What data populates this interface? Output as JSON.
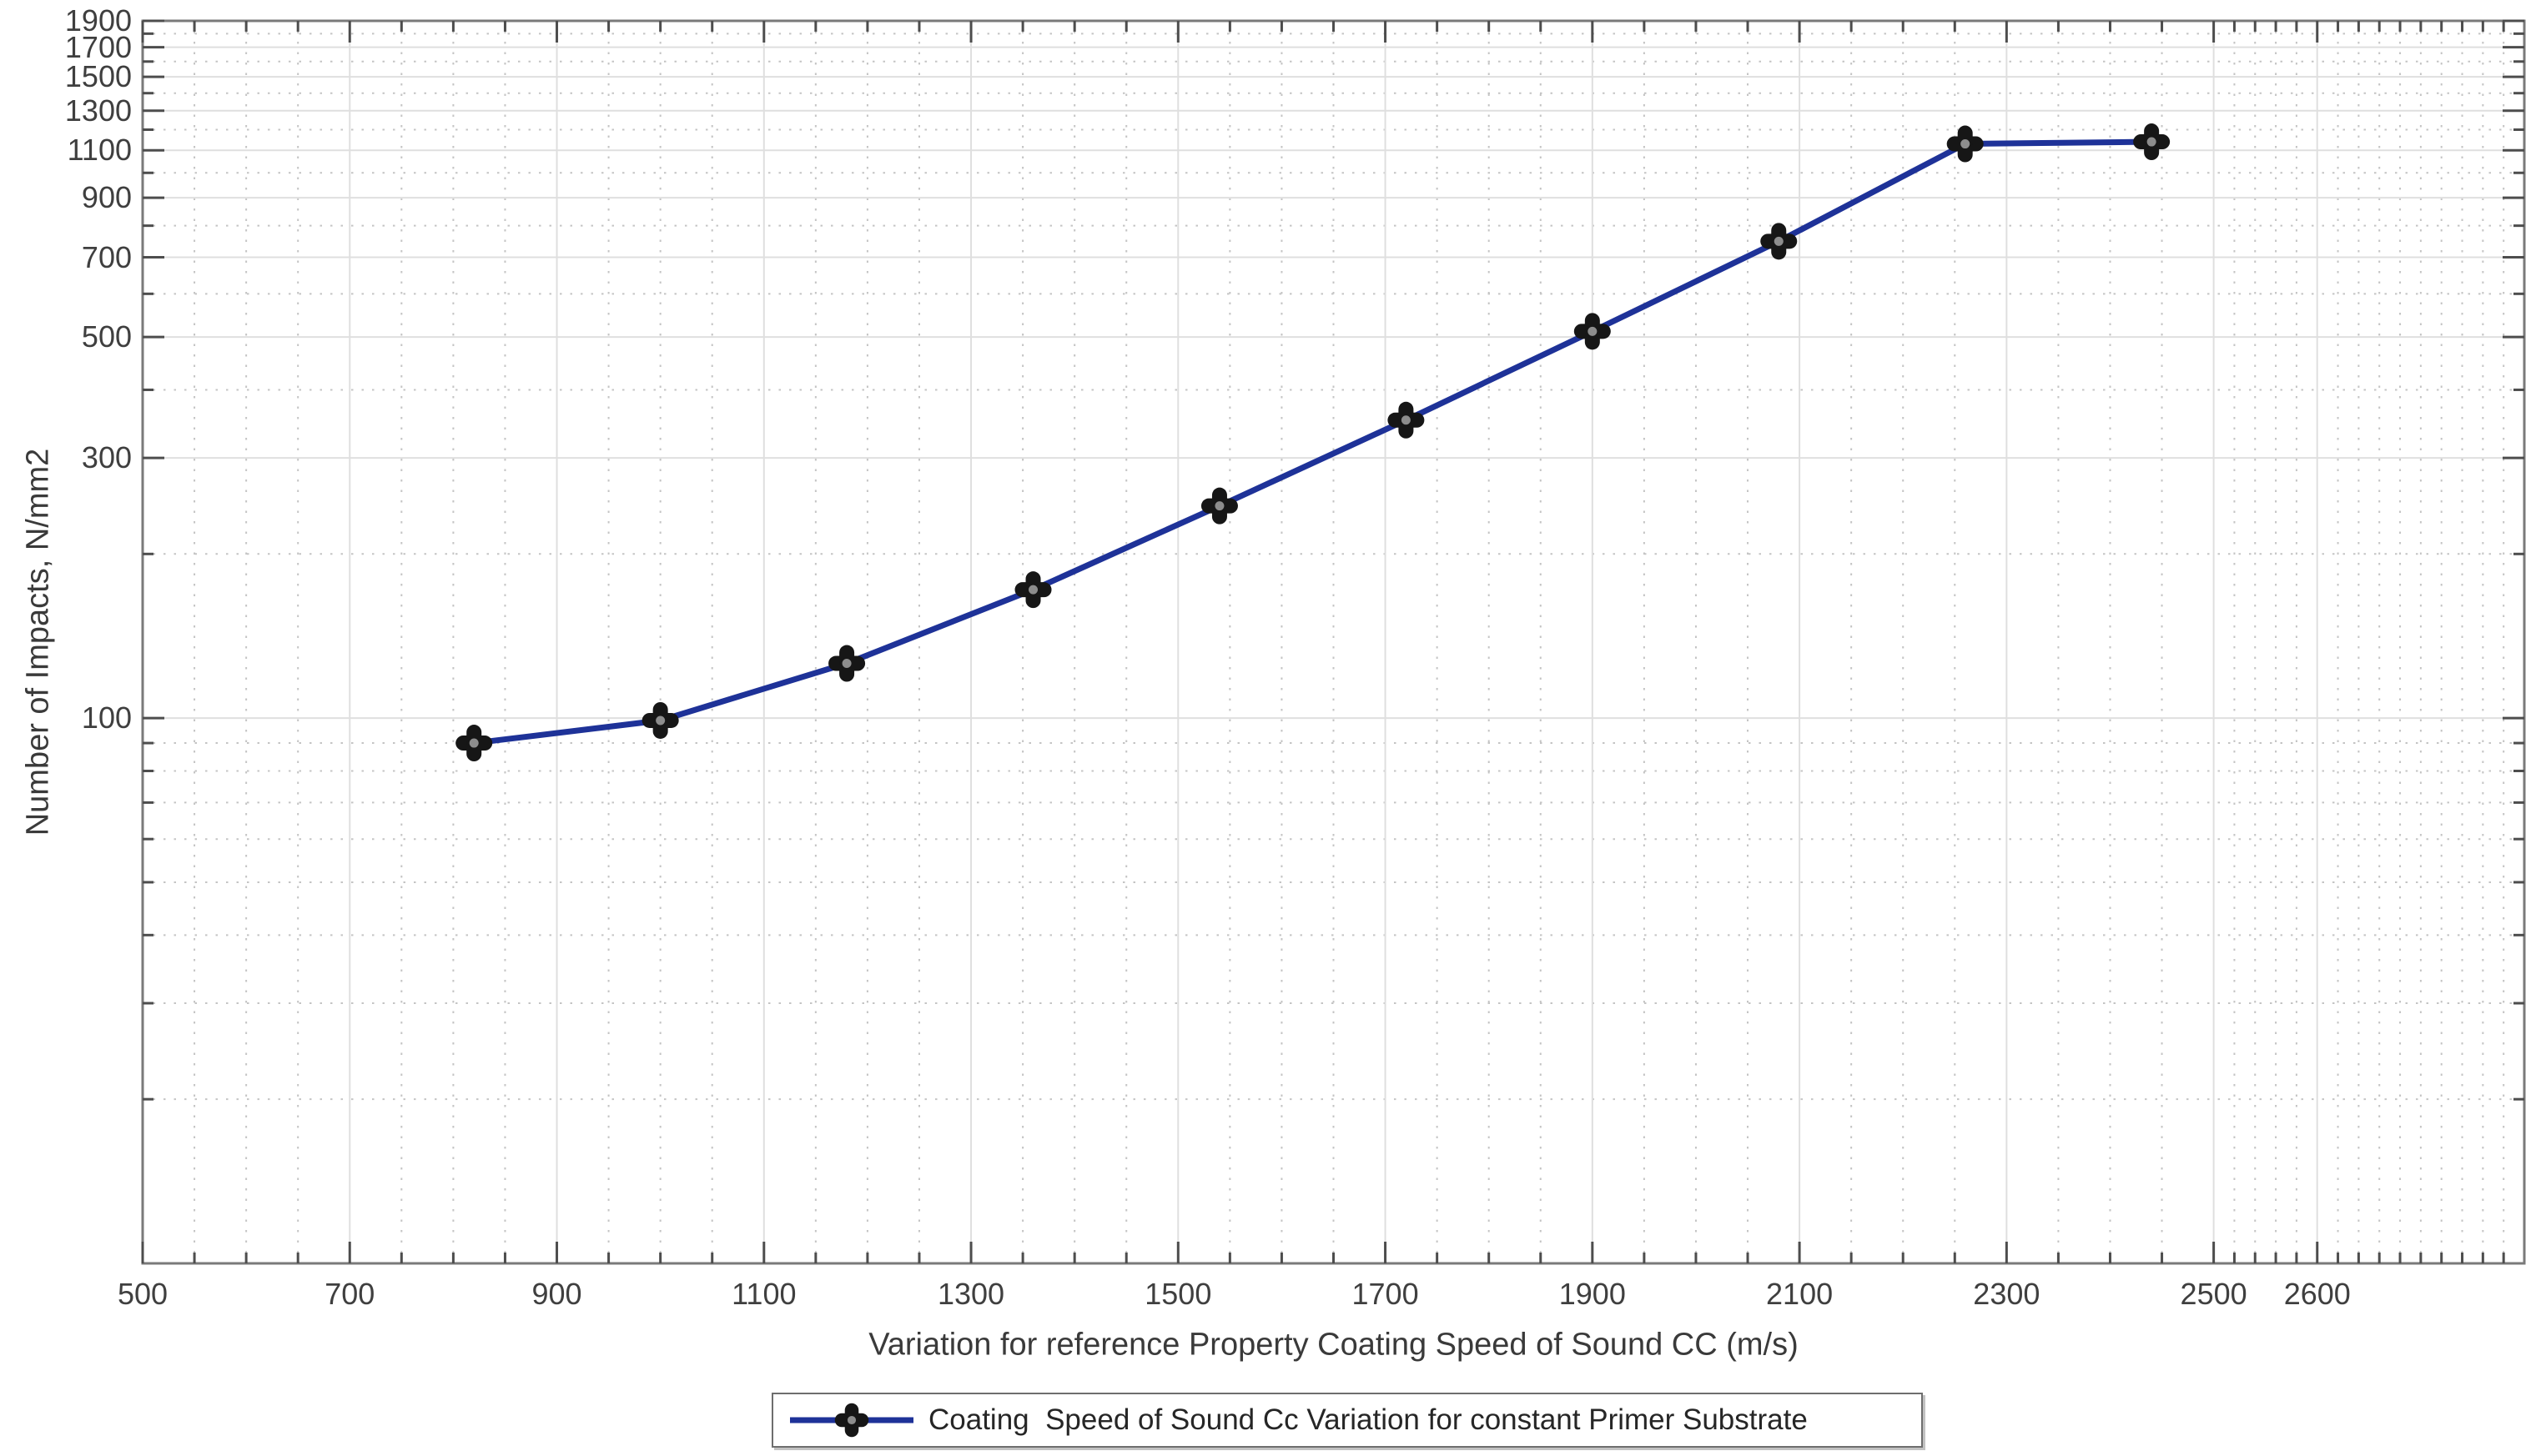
{
  "figure": {
    "background": "#ffffff",
    "frame_color": "#7a7a7a",
    "major_grid_color": "#dfdfdf",
    "minor_grid_color": "#c4c4c4",
    "tick_color": "#4d4d4d",
    "tick_label_color": "#3f3f3f"
  },
  "chart_data": {
    "type": "line",
    "title": "",
    "xlabel": "Variation for reference Property Coating Speed of Sound CC (m/s)",
    "ylabel": "Number of Impacts, N/mm2",
    "x_scale": "linear",
    "y_scale": "log",
    "xlim": [
      500,
      2800
    ],
    "ylim": [
      10,
      1900
    ],
    "x_major_ticks": [
      500,
      700,
      900,
      1100,
      1300,
      1500,
      1700,
      1900,
      2100,
      2300,
      2500,
      2600
    ],
    "x_minor_step": 50,
    "x_minor_dense": {
      "from": 2500,
      "to": 2800,
      "step": 20
    },
    "y_major_ticks": [
      100,
      300,
      500,
      700,
      900,
      1100,
      1300,
      1500,
      1700,
      1900
    ],
    "y_minor_ticks": [
      20,
      30,
      40,
      50,
      60,
      70,
      80,
      90,
      200,
      400,
      600,
      800,
      1000,
      1200,
      1400,
      1600,
      1800
    ],
    "grid": {
      "major": "solid",
      "minor": "dotted",
      "box": true,
      "tick_direction": "in"
    },
    "legend_position": "below-plot",
    "series": [
      {
        "name": "Coating  Speed of Sound Cc Variation for constant Primer Substrate",
        "x": [
          820,
          1000,
          1180,
          1360,
          1540,
          1720,
          1900,
          2080,
          2260,
          2440
        ],
        "y": [
          90,
          99,
          126,
          172,
          245,
          352,
          512,
          749,
          1130,
          1140
        ],
        "line_color": "#1e3298",
        "line_width": 7,
        "marker": "quatrefoil-pentagram",
        "marker_edge_color": "#161616",
        "marker_center_color": "#8d8d8d"
      }
    ]
  }
}
